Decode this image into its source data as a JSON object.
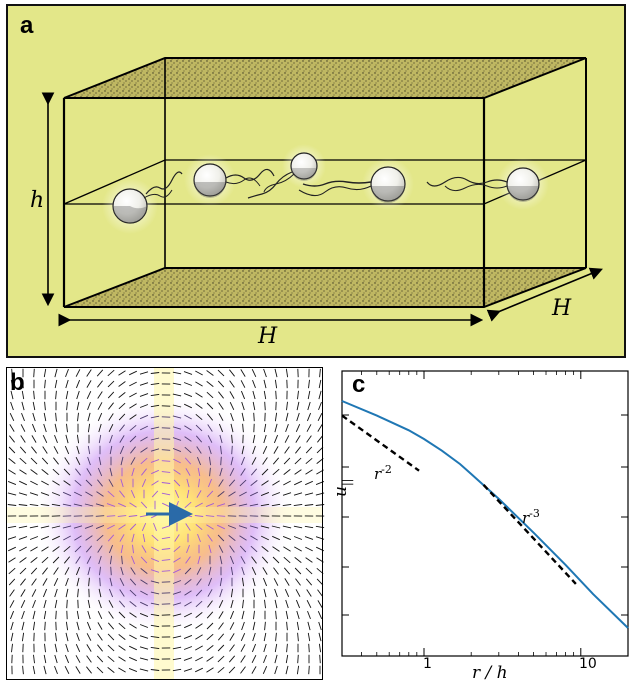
{
  "panel_a": {
    "letter": "a",
    "label_h": "h",
    "label_H_bottom": "H",
    "label_H_side": "H",
    "colors": {
      "background": "#e3e789",
      "wall": "#b9b15e",
      "sphere": "#f2f2ee"
    }
  },
  "panel_b": {
    "letter": "b",
    "colors": {
      "arrow": "#2a6aa8",
      "hot": "#ffff9e",
      "warm": "#f4a15c",
      "cool": "#b86ef0"
    },
    "icons": [
      "swimmer-arrow-icon"
    ]
  },
  "panel_c": {
    "letter": "c",
    "ylabel": "u",
    "ylabel_sub": "||",
    "xlabel": "r / h",
    "xticks": [
      "1",
      "10"
    ],
    "slope_labels": [
      {
        "base": "r",
        "exp": "-2"
      },
      {
        "base": "r",
        "exp": "-3"
      }
    ],
    "colors": {
      "curve": "#1f77b4",
      "guide": "#000000"
    }
  },
  "chart_data": {
    "type": "line",
    "xscale": "log",
    "yscale": "log",
    "xlabel": "r / h",
    "ylabel": "u||",
    "xlim": [
      0.3,
      20
    ],
    "xticks": [
      1,
      10
    ],
    "series": [
      {
        "x": [
          0.3,
          0.5,
          0.8,
          1.0,
          1.3,
          1.7,
          2.0,
          3.0,
          5.0,
          8.0,
          12.0,
          20.0
        ],
        "y": [
          1.0,
          0.55,
          0.3,
          0.21,
          0.13,
          0.075,
          0.05,
          0.018,
          0.0045,
          0.0012,
          0.00036,
          9e-05
        ]
      }
    ],
    "guides": [
      {
        "label": "r^-2",
        "slope": -2,
        "x": [
          0.3,
          0.93
        ]
      },
      {
        "label": "r^-3",
        "slope": -3,
        "x": [
          2.4,
          9.3
        ]
      }
    ]
  }
}
